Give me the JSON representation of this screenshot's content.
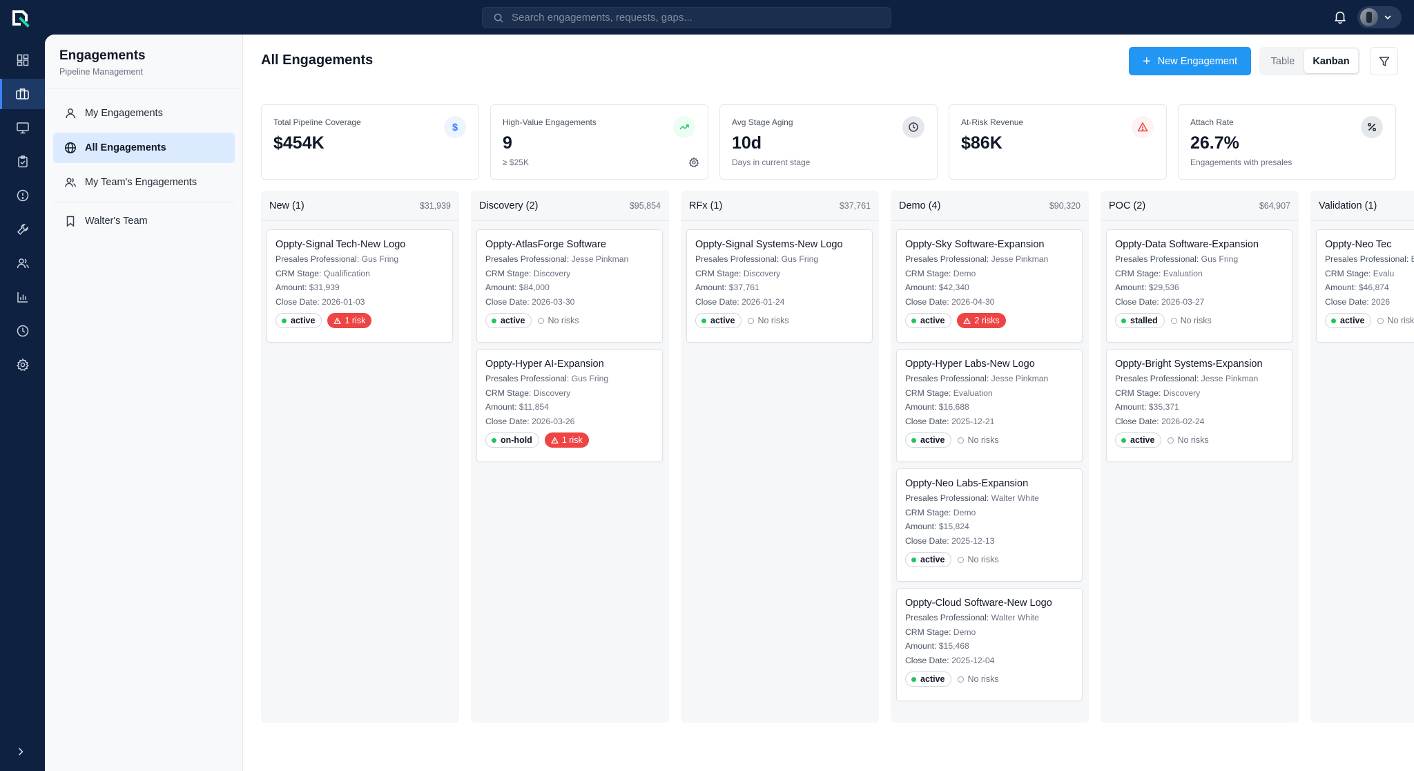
{
  "search": {
    "placeholder": "Search engagements, requests, gaps..."
  },
  "subnav": {
    "title": "Engagements",
    "subtitle": "Pipeline Management",
    "items": [
      {
        "label": "My Engagements",
        "icon": "user-icon"
      },
      {
        "label": "All Engagements",
        "icon": "globe-icon"
      },
      {
        "label": "My Team's Engagements",
        "icon": "users-icon"
      },
      {
        "label": "Walter's Team",
        "icon": "bookmark-icon"
      }
    ]
  },
  "header": {
    "title": "All Engagements",
    "new_button": "New Engagement",
    "view_table": "Table",
    "view_kanban": "Kanban"
  },
  "kpis": [
    {
      "label": "Total Pipeline Coverage",
      "value": "$454K",
      "note": "",
      "icon": "dollar-icon",
      "color": "#3b82f6"
    },
    {
      "label": "High-Value Engagements",
      "value": "9",
      "note": "≥ $25K",
      "icon": "trending-up-icon",
      "color": "#22c55e"
    },
    {
      "label": "Avg Stage Aging",
      "value": "10d",
      "note": "Days in current stage",
      "icon": "clock-icon",
      "color": "#6b7280"
    },
    {
      "label": "At-Risk Revenue",
      "value": "$86K",
      "note": "",
      "icon": "alert-triangle-icon",
      "color": "#ef4444"
    },
    {
      "label": "Attach Rate",
      "value": "26.7%",
      "note": "Engagements with presales",
      "icon": "percent-icon",
      "color": "#374151"
    }
  ],
  "labels": {
    "presales": "Presales Professional:",
    "crm": "CRM Stage:",
    "amount": "Amount:",
    "close": "Close Date:"
  },
  "columns": [
    {
      "name": "New (1)",
      "total": "$31,939",
      "cards": [
        {
          "title": "Oppty-Signal Tech-New Logo",
          "presales": "Gus Fring",
          "crm": "Qualification",
          "amount": "$31,939",
          "close": "2026-01-03",
          "status": "active",
          "risk": "1 risk"
        }
      ]
    },
    {
      "name": "Discovery (2)",
      "total": "$95,854",
      "cards": [
        {
          "title": "Oppty-AtlasForge Software",
          "presales": "Jesse Pinkman",
          "crm": "Discovery",
          "amount": "$84,000",
          "close": "2026-03-30",
          "status": "active",
          "risk": ""
        },
        {
          "title": "Oppty-Hyper AI-Expansion",
          "presales": "Gus Fring",
          "crm": "Discovery",
          "amount": "$11,854",
          "close": "2026-03-26",
          "status": "on-hold",
          "risk": "1 risk"
        }
      ]
    },
    {
      "name": "RFx (1)",
      "total": "$37,761",
      "cards": [
        {
          "title": "Oppty-Signal Systems-New Logo",
          "presales": "Gus Fring",
          "crm": "Discovery",
          "amount": "$37,761",
          "close": "2026-01-24",
          "status": "active",
          "risk": ""
        }
      ]
    },
    {
      "name": "Demo (4)",
      "total": "$90,320",
      "cards": [
        {
          "title": "Oppty-Sky Software-Expansion",
          "presales": "Jesse Pinkman",
          "crm": "Demo",
          "amount": "$42,340",
          "close": "2026-04-30",
          "status": "active",
          "risk": "2 risks"
        },
        {
          "title": "Oppty-Hyper Labs-New Logo",
          "presales": "Jesse Pinkman",
          "crm": "Evaluation",
          "amount": "$16,688",
          "close": "2025-12-21",
          "status": "active",
          "risk": ""
        },
        {
          "title": "Oppty-Neo Labs-Expansion",
          "presales": "Walter White",
          "crm": "Demo",
          "amount": "$15,824",
          "close": "2025-12-13",
          "status": "active",
          "risk": ""
        },
        {
          "title": "Oppty-Cloud Software-New Logo",
          "presales": "Walter White",
          "crm": "Demo",
          "amount": "$15,468",
          "close": "2025-12-04",
          "status": "active",
          "risk": ""
        }
      ]
    },
    {
      "name": "POC (2)",
      "total": "$64,907",
      "cards": [
        {
          "title": "Oppty-Data Software-Expansion",
          "presales": "Gus Fring",
          "crm": "Evaluation",
          "amount": "$29,536",
          "close": "2026-03-27",
          "status": "stalled",
          "risk": ""
        },
        {
          "title": "Oppty-Bright Systems-Expansion",
          "presales": "Jesse Pinkman",
          "crm": "Discovery",
          "amount": "$35,371",
          "close": "2026-02-24",
          "status": "active",
          "risk": ""
        }
      ]
    },
    {
      "name": "Validation (1)",
      "total": "",
      "cards": [
        {
          "title": "Oppty-Neo Tec",
          "presales": "Evalu",
          "crm": "Evalu",
          "amount": "$46,874",
          "close": "2026",
          "status": "active",
          "risk": ""
        }
      ]
    }
  ],
  "norisk_label": "No risks",
  "colors": {
    "accent": "#2196f3",
    "sidebar": "#0f2140",
    "active_nav": "#dbeafe",
    "risk": "#ef4444",
    "status_dot": "#22c55e"
  }
}
